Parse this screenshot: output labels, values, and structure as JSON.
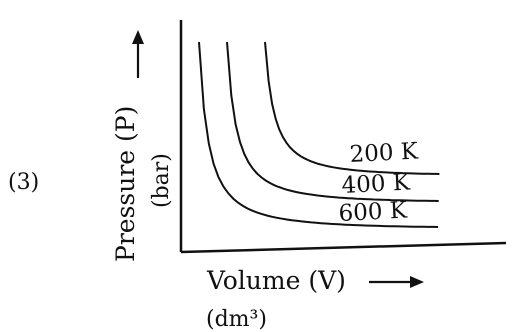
{
  "option_label": "(3)",
  "chart_data": {
    "type": "line",
    "title": "",
    "xlabel": "Volume (V)",
    "xunit": "(dm³)",
    "ylabel": "Pressure (P)",
    "yunit": "(bar)",
    "grid": false,
    "legend": "none",
    "series": [
      {
        "name": "200 K",
        "temperature": 200
      },
      {
        "name": "400 K",
        "temperature": 400
      },
      {
        "name": "600 K",
        "temperature": 600
      }
    ]
  }
}
